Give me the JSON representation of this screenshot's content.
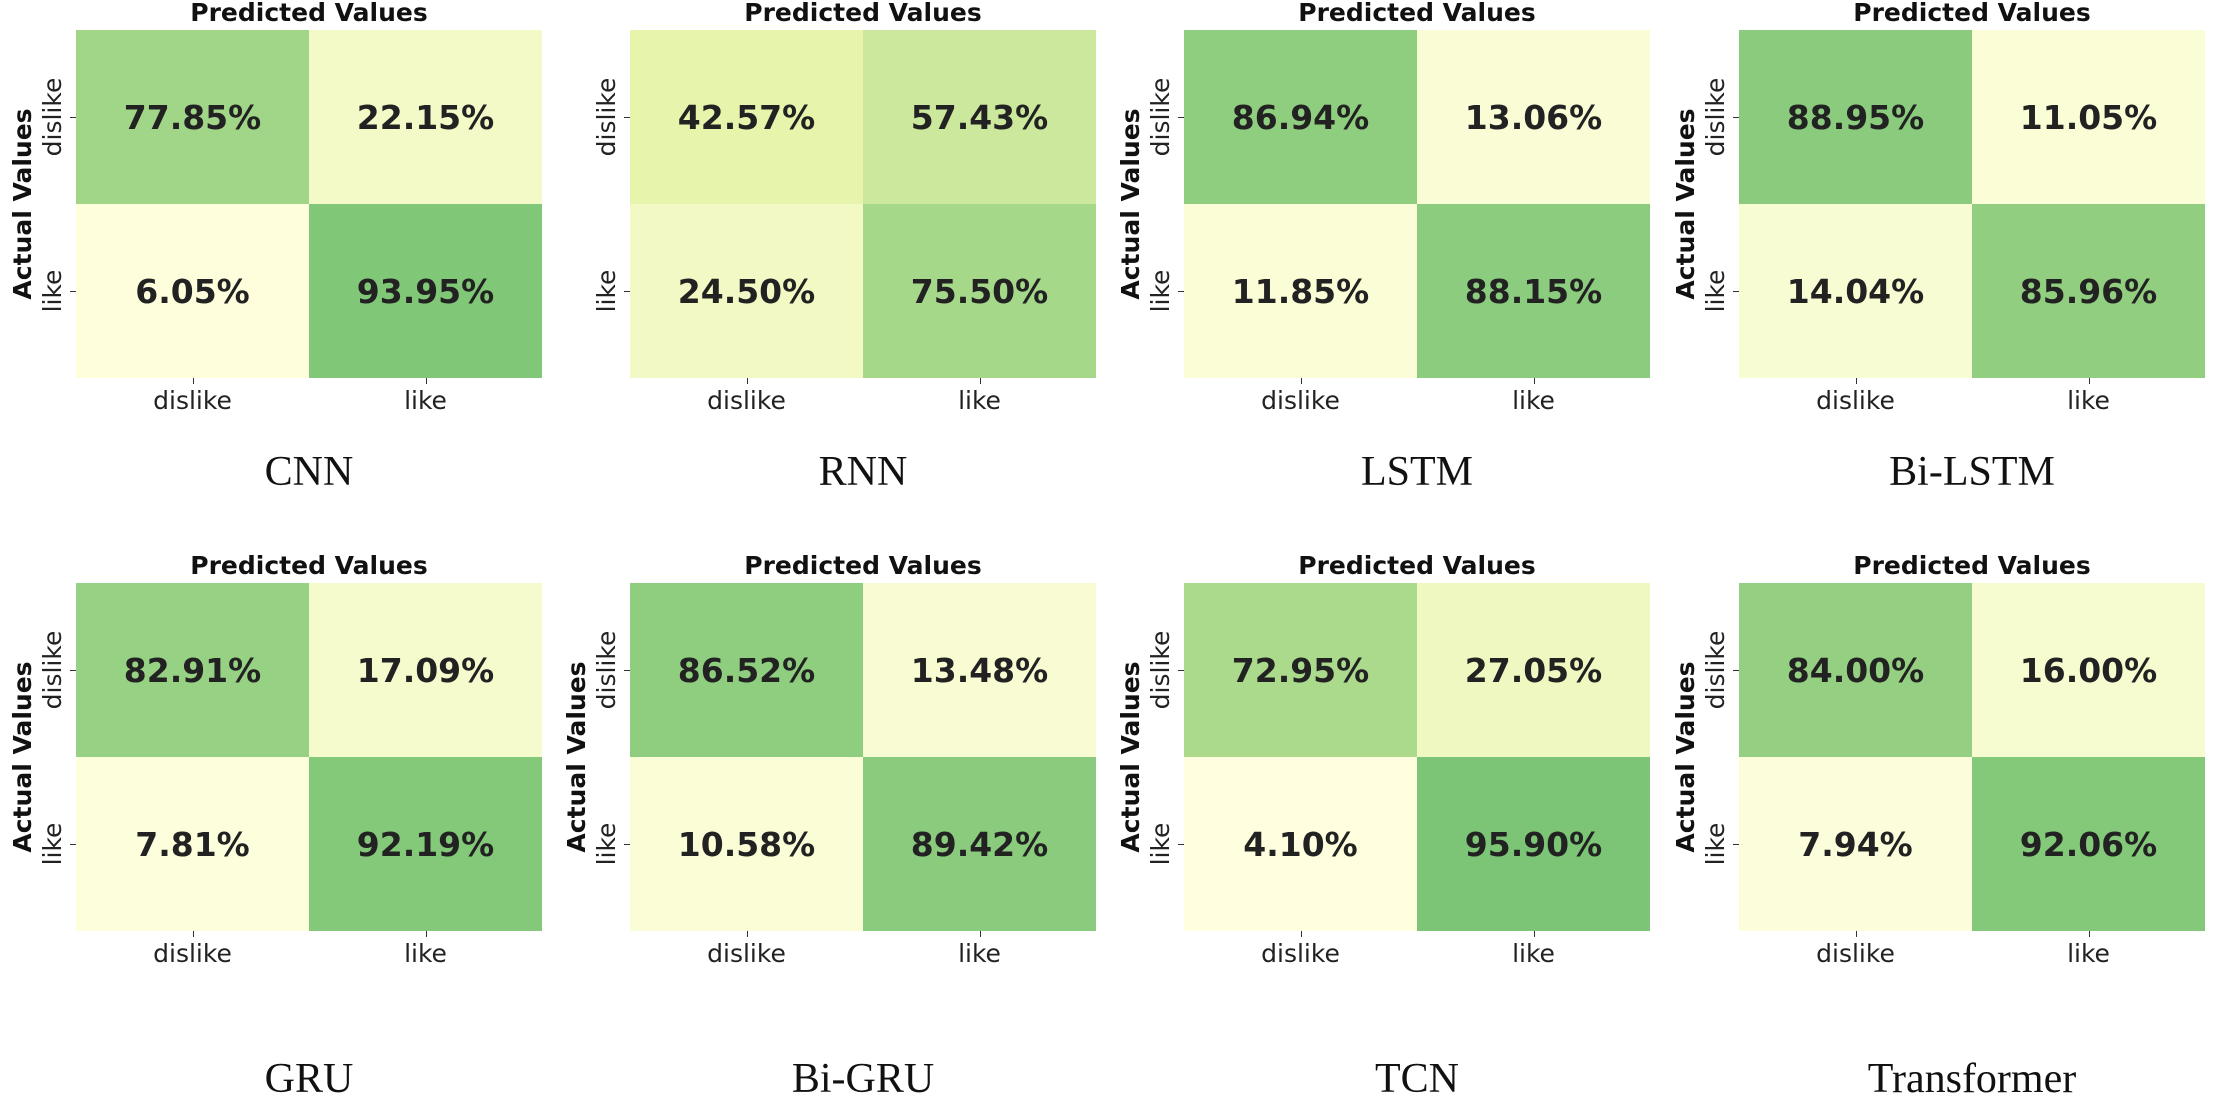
{
  "chart_data": [
    {
      "type": "heatmap",
      "title": "Predicted Values",
      "ylabel": "Actual Values",
      "model": "CNN",
      "x_categories": [
        "dislike",
        "like"
      ],
      "y_categories": [
        "dislike",
        "like"
      ],
      "values": [
        [
          77.85,
          22.15
        ],
        [
          6.05,
          93.95
        ]
      ],
      "labels": [
        [
          "77.85%",
          "22.15%"
        ],
        [
          "6.05%",
          "93.95%"
        ]
      ]
    },
    {
      "type": "heatmap",
      "title": "Predicted Values",
      "ylabel": "",
      "model": "RNN",
      "x_categories": [
        "dislike",
        "like"
      ],
      "y_categories": [
        "dislike",
        "like"
      ],
      "values": [
        [
          42.57,
          57.43
        ],
        [
          24.5,
          75.5
        ]
      ],
      "labels": [
        [
          "42.57%",
          "57.43%"
        ],
        [
          "24.50%",
          "75.50%"
        ]
      ]
    },
    {
      "type": "heatmap",
      "title": "Predicted Values",
      "ylabel": "Actual Values",
      "model": "LSTM",
      "x_categories": [
        "dislike",
        "like"
      ],
      "y_categories": [
        "dislike",
        "like"
      ],
      "values": [
        [
          86.94,
          13.06
        ],
        [
          11.85,
          88.15
        ]
      ],
      "labels": [
        [
          "86.94%",
          "13.06%"
        ],
        [
          "11.85%",
          "88.15%"
        ]
      ]
    },
    {
      "type": "heatmap",
      "title": "Predicted Values",
      "ylabel": "Actual Values",
      "model": "Bi-LSTM",
      "x_categories": [
        "dislike",
        "like"
      ],
      "y_categories": [
        "dislike",
        "like"
      ],
      "values": [
        [
          88.95,
          11.05
        ],
        [
          14.04,
          85.96
        ]
      ],
      "labels": [
        [
          "88.95%",
          "11.05%"
        ],
        [
          "14.04%",
          "85.96%"
        ]
      ]
    },
    {
      "type": "heatmap",
      "title": "Predicted Values",
      "ylabel": "Actual Values",
      "model": "GRU",
      "x_categories": [
        "dislike",
        "like"
      ],
      "y_categories": [
        "dislike",
        "like"
      ],
      "values": [
        [
          82.91,
          17.09
        ],
        [
          7.81,
          92.19
        ]
      ],
      "labels": [
        [
          "82.91%",
          "17.09%"
        ],
        [
          "7.81%",
          "92.19%"
        ]
      ]
    },
    {
      "type": "heatmap",
      "title": "Predicted Values",
      "ylabel": "Actual Values",
      "model": "Bi-GRU",
      "x_categories": [
        "dislike",
        "like"
      ],
      "y_categories": [
        "dislike",
        "like"
      ],
      "values": [
        [
          86.52,
          13.48
        ],
        [
          10.58,
          89.42
        ]
      ],
      "labels": [
        [
          "86.52%",
          "13.48%"
        ],
        [
          "10.58%",
          "89.42%"
        ]
      ]
    },
    {
      "type": "heatmap",
      "title": "Predicted Values",
      "ylabel": "Actual Values",
      "model": "TCN",
      "x_categories": [
        "dislike",
        "like"
      ],
      "y_categories": [
        "dislike",
        "like"
      ],
      "values": [
        [
          72.95,
          27.05
        ],
        [
          4.1,
          95.9
        ]
      ],
      "labels": [
        [
          "72.95%",
          "27.05%"
        ],
        [
          "4.10%",
          "95.90%"
        ]
      ]
    },
    {
      "type": "heatmap",
      "title": "Predicted Values",
      "ylabel": "Actual Values",
      "model": "Transformer",
      "x_categories": [
        "dislike",
        "like"
      ],
      "y_categories": [
        "dislike",
        "like"
      ],
      "values": [
        [
          84.0,
          16.0
        ],
        [
          7.94,
          92.06
        ]
      ],
      "labels": [
        [
          "84.00%",
          "16.00%"
        ],
        [
          "7.94%",
          "92.06%"
        ]
      ]
    }
  ],
  "colors": {
    "low": "#ffffe0",
    "mid": "#e4f3a8",
    "high": "#7cc576",
    "text": "#222222"
  }
}
